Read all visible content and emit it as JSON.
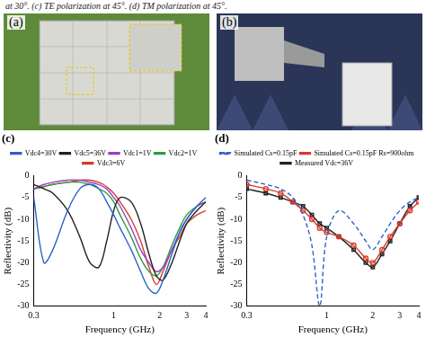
{
  "caption": "at 30°. (c) TE polarization at 45°. (d) TM polarization at 45°.",
  "photo_panels": [
    "(a)",
    "(b)"
  ],
  "chart_data": [
    {
      "type": "line",
      "title": "(c)",
      "x_label": "Frequency (GHz)",
      "y_label": "Reflectivity (dB)",
      "log": "x",
      "grid": false,
      "legend": "top",
      "xlim": [
        0.3,
        4
      ],
      "xticks": [
        0.3,
        1,
        2,
        3,
        4
      ],
      "ylim": [
        -30,
        0
      ],
      "yticks": [
        -30,
        -25,
        -20,
        -15,
        -10,
        -5,
        0
      ],
      "x": [
        0.3,
        0.35,
        0.4,
        0.5,
        0.6,
        0.7,
        0.8,
        0.9,
        1.0,
        1.1,
        1.3,
        1.5,
        1.7,
        1.9,
        2.1,
        2.4,
        2.7,
        3.0,
        3.5,
        4.0
      ],
      "series": [
        {
          "name": "Vdc4=30V",
          "color": "#2a62c9",
          "marker": "none",
          "line_style": "solid",
          "values": [
            -5,
            -20,
            -17,
            -8,
            -3,
            -2,
            -3,
            -6,
            -9,
            -12,
            -17,
            -22,
            -26,
            -27,
            -24,
            -18,
            -13,
            -10,
            -7,
            -5
          ]
        },
        {
          "name": "Vdc5=36V",
          "color": "#222222",
          "marker": "none",
          "line_style": "solid",
          "values": [
            -2,
            -3,
            -4,
            -8,
            -14,
            -20,
            -21,
            -15,
            -8,
            -5,
            -6,
            -11,
            -18,
            -23,
            -24,
            -20,
            -15,
            -11,
            -8,
            -6
          ]
        },
        {
          "name": "Vdc1=1V",
          "color": "#9b3fc4",
          "marker": "none",
          "line_style": "solid",
          "values": [
            -3,
            -2,
            -1.5,
            -1,
            -1,
            -1.5,
            -2,
            -3,
            -5,
            -7,
            -12,
            -17,
            -20,
            -22,
            -21,
            -17,
            -13,
            -10,
            -7,
            -6
          ]
        },
        {
          "name": "Vdc2=1V",
          "color": "#2e9e3e",
          "marker": "none",
          "line_style": "solid",
          "values": [
            -3,
            -2.5,
            -2,
            -1.5,
            -1.5,
            -2,
            -3,
            -4,
            -6,
            -9,
            -14,
            -19,
            -22,
            -23,
            -21,
            -16,
            -12,
            -9,
            -7,
            -6
          ]
        },
        {
          "name": "Vdc3=6V",
          "color": "#d63a2e",
          "marker": "none",
          "line_style": "solid",
          "values": [
            -3,
            -2.5,
            -2,
            -1.5,
            -1,
            -1,
            -1.5,
            -2.5,
            -4,
            -6,
            -10,
            -15,
            -21,
            -25,
            -22,
            -17,
            -14,
            -11,
            -9,
            -8
          ]
        }
      ]
    },
    {
      "type": "line",
      "title": "(d)",
      "x_label": "Frequency (GHz)",
      "y_label": "Reflectivity (dB)",
      "log": "x",
      "grid": false,
      "legend": "top",
      "xlim": [
        0.3,
        4
      ],
      "xticks": [
        0.3,
        1,
        2,
        3,
        4
      ],
      "ylim": [
        -30,
        0
      ],
      "yticks": [
        -30,
        -25,
        -20,
        -15,
        -10,
        -5,
        0
      ],
      "x": [
        0.3,
        0.4,
        0.5,
        0.6,
        0.7,
        0.8,
        0.9,
        1.0,
        1.2,
        1.5,
        1.8,
        2.0,
        2.3,
        2.6,
        3.0,
        3.5,
        4.0
      ],
      "series": [
        {
          "name": "Simulated Cs=0.15pF",
          "color": "#2a62c9",
          "marker": "none",
          "line_style": "dashed",
          "values": [
            -1,
            -2,
            -3,
            -5,
            -9,
            -16,
            -30,
            -14,
            -8,
            -11,
            -15,
            -17,
            -14,
            -11,
            -8,
            -6,
            -5
          ]
        },
        {
          "name": "Simulated Cs=0.15pF Rs=900ohm",
          "color": "#d63a2e",
          "marker": "circle",
          "line_style": "solid",
          "values": [
            -2,
            -3,
            -4,
            -6,
            -8,
            -10,
            -12,
            -13,
            -14,
            -16,
            -19,
            -20,
            -17,
            -14,
            -11,
            -8,
            -6
          ]
        },
        {
          "name": "Measured Vdc=36V",
          "color": "#222222",
          "marker": "square",
          "line_style": "solid",
          "values": [
            -3,
            -4,
            -5,
            -6,
            -7,
            -9,
            -11,
            -12,
            -14,
            -17,
            -20,
            -21,
            -18,
            -15,
            -11,
            -7,
            -5
          ]
        }
      ]
    }
  ]
}
